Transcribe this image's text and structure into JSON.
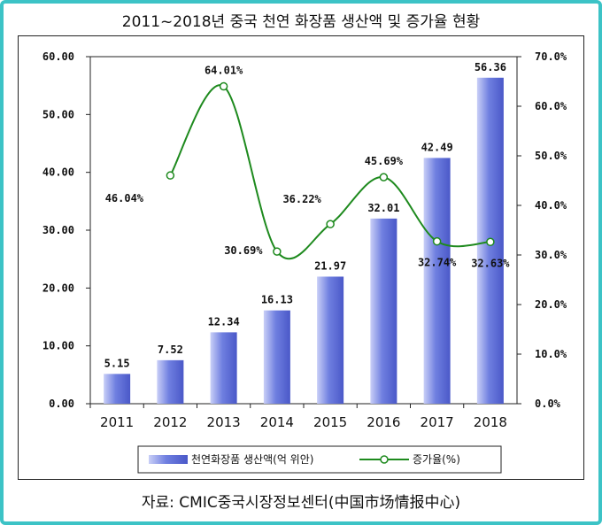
{
  "header": {
    "title": "2011~2018년 중국 천연 화장품 생산액 및 증가율 현황"
  },
  "source": {
    "caption": "자료: CMIC중국시장정보센터(中国市场情报中心)"
  },
  "colors": {
    "border": "#3cc3c6",
    "bar": "#6f7fe0",
    "line": "#1e8a1e"
  },
  "chart_data": {
    "type": "bar",
    "categories": [
      "2011",
      "2012",
      "2013",
      "2014",
      "2015",
      "2016",
      "2017",
      "2018"
    ],
    "series": [
      {
        "name": "천연화장품 생산액(억 위안)",
        "type": "bar",
        "axis": "left",
        "values": [
          5.15,
          7.52,
          12.34,
          16.13,
          21.97,
          32.01,
          42.49,
          56.36
        ],
        "labels": [
          "5.15",
          "7.52",
          "12.34",
          "16.13",
          "21.97",
          "32.01",
          "42.49",
          "56.36"
        ]
      },
      {
        "name": "증가율(%)",
        "type": "line",
        "axis": "right",
        "values": [
          null,
          46.04,
          64.01,
          30.69,
          36.22,
          45.69,
          32.74,
          32.63
        ],
        "labels": [
          "",
          "46.04%",
          "64.01%",
          "30.69%",
          "36.22%",
          "45.69%",
          "32.74%",
          "32.63%"
        ]
      }
    ],
    "y_left": {
      "ylim": [
        0,
        60
      ],
      "ticks": [
        "0.00",
        "10.00",
        "20.00",
        "30.00",
        "40.00",
        "50.00",
        "60.00"
      ]
    },
    "y_right": {
      "ylim": [
        0,
        70
      ],
      "ticks": [
        "0.0%",
        "10.0%",
        "20.0%",
        "30.0%",
        "40.0%",
        "50.0%",
        "60.0%",
        "70.0%"
      ]
    },
    "grid": false,
    "legend": {
      "placement": "bottom",
      "items": [
        "천연화장품 생산액(억 위안)",
        "증가율(%)"
      ]
    }
  }
}
